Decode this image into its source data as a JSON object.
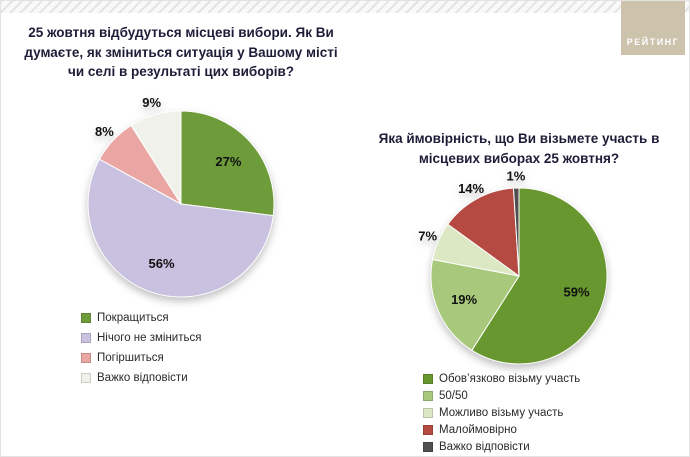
{
  "logo": {
    "text": "РЕЙТИНГ"
  },
  "chart_data": [
    {
      "type": "pie",
      "title": "25 жовтня відбудуться місцеві вибори. Як Ви думаєте, як зміниться ситуація у Вашому місті чи селі в результаті цих виборів?",
      "legend_position": "bottom-left",
      "slices": [
        {
          "label": "Покращиться",
          "value": 27,
          "pct": "27%",
          "color": "#6e9c3b"
        },
        {
          "label": "Нічого не зміниться",
          "value": 56,
          "pct": "56%",
          "color": "#c9c1e0"
        },
        {
          "label": "Погіршиться",
          "value": 8,
          "pct": "8%",
          "color": "#eaa6a2"
        },
        {
          "label": "Важко відповісти",
          "value": 9,
          "pct": "9%",
          "color": "#f1f1ec"
        }
      ]
    },
    {
      "type": "pie",
      "title": "Яка ймовірність, що Ви візьмете участь в місцевих виборах 25 жовтня?",
      "legend_position": "bottom-right",
      "slices": [
        {
          "label": "Обов’язково візьму участь",
          "value": 59,
          "pct": "59%",
          "color": "#68972f"
        },
        {
          "label": "50/50",
          "value": 19,
          "pct": "19%",
          "color": "#a8c87b"
        },
        {
          "label": "Можливо візьму участь",
          "value": 7,
          "pct": "7%",
          "color": "#dce7c3"
        },
        {
          "label": "Малоймовірно",
          "value": 14,
          "pct": "14%",
          "color": "#b54a42"
        },
        {
          "label": "Важко відповісти",
          "value": 1,
          "pct": "1%",
          "color": "#4f4f4f"
        }
      ]
    }
  ]
}
